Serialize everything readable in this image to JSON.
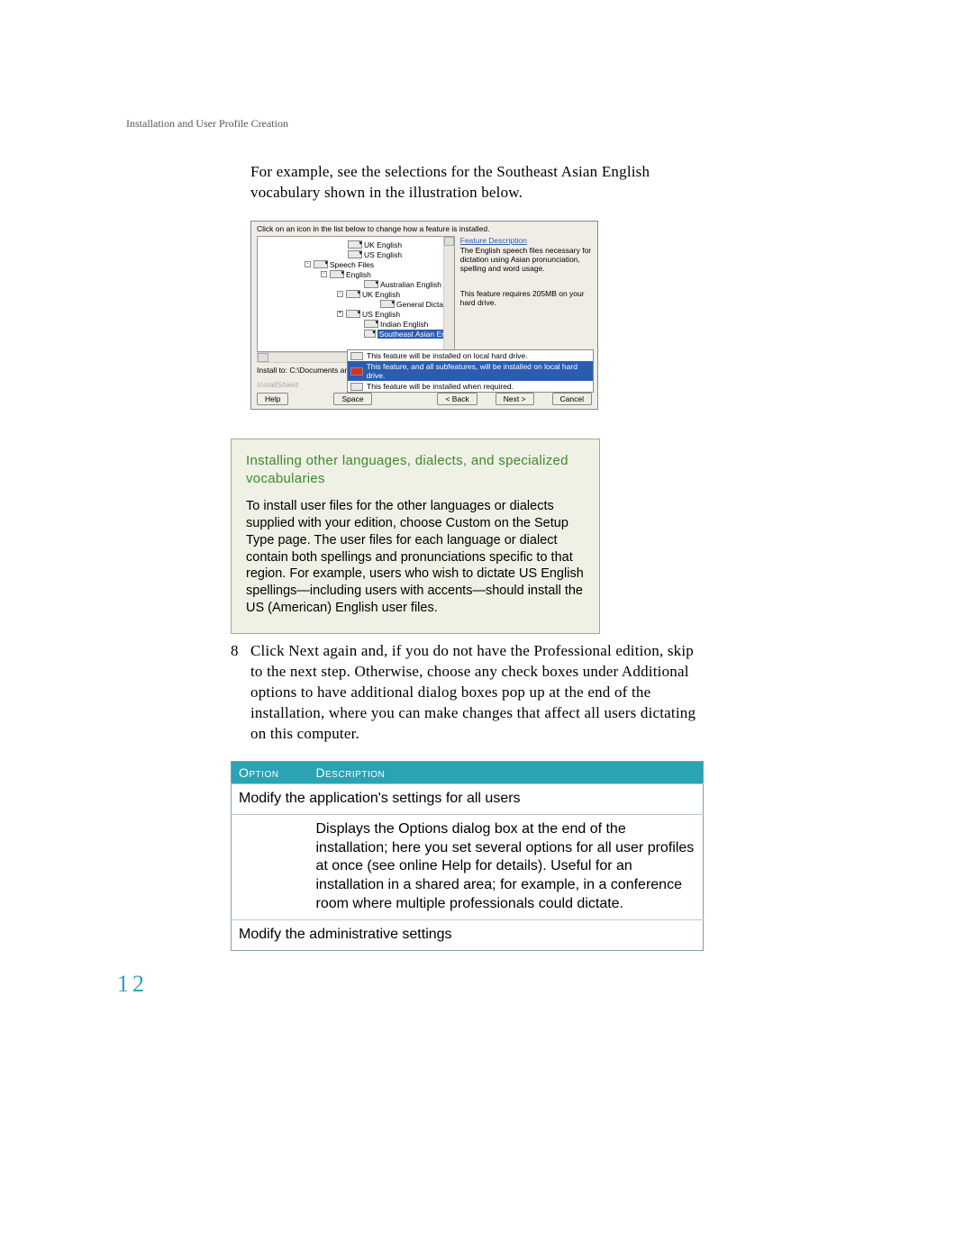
{
  "header": {
    "text": "Installation and User Profile Creation"
  },
  "intro": {
    "text": "For example, see the selections for the Southeast Asian English vocabulary shown in the illustration below."
  },
  "installer": {
    "instruction": "Click on an icon in the list below to change how a feature is installed.",
    "tree": {
      "items": [
        {
          "indent": 98,
          "label": "UK English"
        },
        {
          "indent": 98,
          "label": "US English"
        },
        {
          "indent": 62,
          "label": "Speech Files",
          "expand": "-"
        },
        {
          "indent": 80,
          "label": "English",
          "expand": "-"
        },
        {
          "indent": 116,
          "label": "Australian English"
        },
        {
          "indent": 98,
          "label": "UK English",
          "expand": "-"
        },
        {
          "indent": 134,
          "label": "General Dicta"
        },
        {
          "indent": 98,
          "label": "US English",
          "expand": "+"
        },
        {
          "indent": 116,
          "label": "Indian English"
        },
        {
          "indent": 116,
          "label": "Southeast Asian Eng",
          "selected": true
        }
      ]
    },
    "desc": {
      "title": "Feature Description",
      "body": "The English speech files necessary for dictation using Asian pronunciation, spelling and word usage.",
      "req": "This feature requires 205MB on your hard drive."
    },
    "popup": {
      "rows": [
        {
          "text": "This feature will be installed on local hard drive."
        },
        {
          "text": "This feature, and all subfeatures, will be installed on local hard drive.",
          "selected": true,
          "red": true
        },
        {
          "text": "This feature will be installed when required.",
          "cd": true
        }
      ]
    },
    "install_to": "Install to: C:\\Documents an",
    "brand": "InstallShield",
    "buttons": {
      "help": "Help",
      "space": "Space",
      "back": "< Back",
      "next": "Next >",
      "cancel": "Cancel"
    }
  },
  "note": {
    "title": "Installing other languages, dialects, and specialized vocabularies",
    "body": "To install user files for the other languages or dialects supplied with your edition, choose Custom on the Setup Type page. The user files for each language or dialect contain both spellings and pronunciations specific to that region. For example, users who wish to dictate US English spellings—including users with accents—should install the US (American) English user files."
  },
  "step8": {
    "num": "8",
    "text": "Click Next again and, if you do not have the Professional edition, skip to the next step. Otherwise, choose any check boxes under Additional options to have additional dialog boxes pop up at the end of the installation, where you can make changes that affect all users dictating on this computer."
  },
  "table": {
    "headers": {
      "option": "Option",
      "description": "Description"
    },
    "row1": {
      "title": "Modify the application's settings for all users"
    },
    "row1desc": "Displays the Options dialog box at the end of the installation; here you set several options for all user profiles at once (see online Help for details). Useful for an installation in a shared area; for example, in a conference room where multiple professionals could dictate.",
    "row2": {
      "title": "Modify the administrative settings"
    }
  },
  "page_number": "12",
  "colors": {
    "accent_teal": "#2aa3b5",
    "note_green": "#3c8a2e",
    "note_bg": "#eef1e4",
    "installer_bg": "#efede6",
    "selection_blue": "#2a5db0"
  }
}
